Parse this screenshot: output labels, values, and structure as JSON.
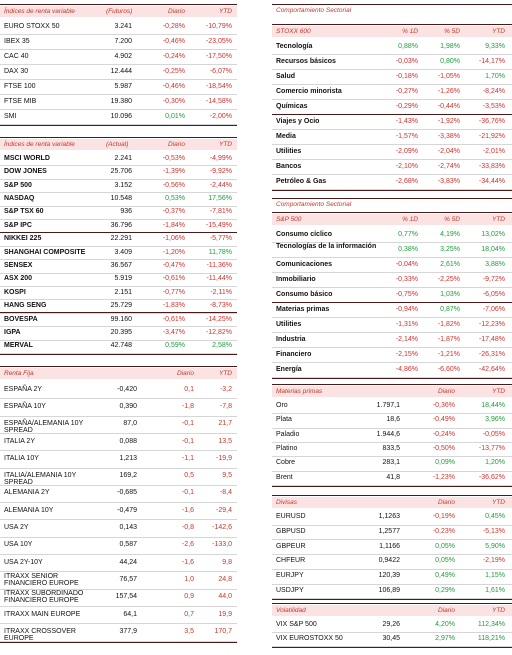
{
  "panels": [
    {
      "header": [
        "Índices de renta variable",
        "(Futuros)",
        "Diario",
        "YTD"
      ],
      "groups": [
        [
          [
            "EURO STOXX 50",
            "3.241",
            "-0,28%",
            "-10,79%"
          ],
          [
            "IBEX 35",
            "7.200",
            "-0,46%",
            "-23,05%"
          ],
          [
            "CAC 40",
            "4.902",
            "-0,24%",
            "-17,50%"
          ],
          [
            "DAX 30",
            "12.444",
            "-0,25%",
            "-6,07%"
          ],
          [
            "FTSE 100",
            "5.987",
            "-0,46%",
            "-18,54%"
          ],
          [
            "FTSE MIB",
            "19.380",
            "-0,30%",
            "-14,58%"
          ],
          [
            "SMI",
            "10.096",
            "0,01%",
            "-2,00%"
          ]
        ]
      ]
    },
    {
      "header": [
        "Índices de renta variable",
        "(Actual)",
        "Diario",
        "YTD"
      ],
      "groups": [
        [
          [
            "MSCI WORLD",
            "2.241",
            "-0,53%",
            "-4,99%"
          ],
          [
            "DOW JONES",
            "25.706",
            "-1,39%",
            "-9,92%"
          ],
          [
            "S&P 500",
            "3.152",
            "-0,56%",
            "-2,44%"
          ],
          [
            "NASDAQ",
            "10.548",
            "0,53%",
            "17,56%"
          ],
          [
            "S&P TSX 60",
            "936",
            "-0,37%",
            "-7,81%"
          ],
          [
            "S&P IPC",
            "36.796",
            "-1,84%",
            "-15,49%"
          ]
        ],
        [
          [
            "NIKKEI 225",
            "22.291",
            "-1,06%",
            "-5,77%"
          ],
          [
            "SHANGHAI COMPOSITE",
            "3.409",
            "-1,20%",
            "11,78%"
          ],
          [
            "SENSEX",
            "36.567",
            "-0,47%",
            "-11,36%"
          ],
          [
            "ASX 200",
            "5.919",
            "-0,61%",
            "-11,44%"
          ],
          [
            "KOSPI",
            "2.151",
            "-0,77%",
            "-2,11%"
          ],
          [
            "HANG SENG",
            "25.729",
            "-1,83%",
            "-8,73%"
          ]
        ],
        [
          [
            "BOVESPA",
            "99.160",
            "-0,61%",
            "-14,25%"
          ],
          [
            "IGPA",
            "20.395",
            "-3,47%",
            "-12,82%"
          ],
          [
            "MERVAL",
            "42.748",
            "0,59%",
            "2,58%"
          ]
        ]
      ]
    },
    {
      "header": [
        "Renta Fija",
        "Diario",
        "YTD"
      ],
      "groups": [
        [
          [
            "ESPAÑA 2Y",
            "-0,420",
            "0,1",
            "-3,2"
          ],
          [
            "ESPAÑA 10Y",
            "0,390",
            "-1,8",
            "-7,8"
          ],
          [
            "ESPAÑA/ALEMANIA 10Y SPREAD",
            "87,0",
            "-0,1",
            "21,7"
          ],
          [
            "ITALIA 2Y",
            "0,088",
            "-0,1",
            "13,5"
          ],
          [
            "ITALIA 10Y",
            "1,213",
            "-1,1",
            "-19,9"
          ],
          [
            "ITALIA/ALEMANIA 10Y SPREAD",
            "169,2",
            "0,5",
            "9,5"
          ],
          [
            "ALEMANIA 2Y",
            "-0,685",
            "-0,1",
            "-8,4"
          ],
          [
            "ALEMANIA 10Y",
            "-0,479",
            "-1,6",
            "-29,4"
          ],
          [
            "USA 2Y",
            "0,143",
            "-0,8",
            "-142,6"
          ],
          [
            "USA 10Y",
            "0,587",
            "-2,6",
            "-133,0"
          ],
          [
            "USA 2Y-10Y",
            "44,24",
            "-1,6",
            "9,8"
          ],
          [
            "ITRAXX SENIOR FINANCIERO EUROPE",
            "76,57",
            "1,0",
            "24,8"
          ],
          [
            "ITRAXX SUBORDINADO FINANCIERO EUROPE",
            "157,54",
            "0,9",
            "44,0"
          ],
          [
            "ITRAXX MAIN EUROPE",
            "64,1",
            "0,7",
            "19,9"
          ],
          [
            "ITRAXX CROSSOVER EUROPE",
            "377,9",
            "3,5",
            "170,7"
          ]
        ]
      ]
    },
    {
      "title": "Comportamiento Sectorial",
      "header": [
        "STOXX 600",
        "% 1D",
        "% 5D",
        "YTD"
      ],
      "groups": [
        [
          [
            "Tecnología",
            "0,88%",
            "1,98%",
            "9,33%"
          ],
          [
            "Recursos básicos",
            "-0,03%",
            "0,80%",
            "-14,17%"
          ],
          [
            "Salud",
            "-0,18%",
            "-1,05%",
            "1,70%"
          ],
          [
            "Comercio minorista",
            "-0,27%",
            "-1,26%",
            "-8,24%"
          ],
          [
            "Químicas",
            "-0,29%",
            "-0,44%",
            "-3,53%"
          ]
        ],
        [
          [
            "Viajes y Ocio",
            "-1,43%",
            "-1,92%",
            "-36,76%"
          ],
          [
            "Media",
            "-1,57%",
            "-3,38%",
            "-21,92%"
          ],
          [
            "Utilities",
            "-2,09%",
            "-2,04%",
            "-2,01%"
          ],
          [
            "Bancos",
            "-2,10%",
            "-2,74%",
            "-33,83%"
          ],
          [
            "Petróleo & Gas",
            "-2,68%",
            "-3,83%",
            "-34,44%"
          ]
        ]
      ]
    },
    {
      "title": "Comportamiento Sectorial",
      "header": [
        "S&P 500",
        "% 1D",
        "% 5D",
        "YTD"
      ],
      "groups": [
        [
          [
            "Consumo cíclico",
            "0,77%",
            "4,19%",
            "13,02%"
          ],
          [
            "Tecnologías de la información",
            "0,38%",
            "3,25%",
            "18,04%"
          ],
          [
            "Comunicaciones",
            "-0,04%",
            "2,61%",
            "3,88%"
          ],
          [
            "Inmobiliario",
            "-0,33%",
            "-2,25%",
            "-9,72%"
          ],
          [
            "Consumo básico",
            "-0,75%",
            "1,03%",
            "-6,05%"
          ]
        ],
        [
          [
            "Materias primas",
            "-0,94%",
            "0,87%",
            "-7,06%"
          ],
          [
            "Utilities",
            "-1,31%",
            "-1,82%",
            "-12,23%"
          ],
          [
            "Industria",
            "-2,14%",
            "-1,87%",
            "-17,48%"
          ],
          [
            "Financiero",
            "-2,15%",
            "-1,21%",
            "-26,31%"
          ],
          [
            "Energía",
            "-4,86%",
            "-6,60%",
            "-42,64%"
          ]
        ]
      ]
    },
    {
      "header": [
        "Materias primas",
        "Diario",
        "YTD"
      ],
      "groups": [
        [
          [
            "Oro",
            "1.797,1",
            "-0,36%",
            "18,44%"
          ],
          [
            "Plata",
            "18,6",
            "-0,49%",
            "3,96%"
          ],
          [
            "Paladio",
            "1.944,6",
            "-0,24%",
            "-0,05%"
          ],
          [
            "Platino",
            "833,5",
            "-0,50%",
            "-13,77%"
          ],
          [
            "Cobre",
            "283,1",
            "0,09%",
            "1,20%"
          ],
          [
            "Brent",
            "41,8",
            "-1,23%",
            "-36,62%"
          ]
        ]
      ]
    },
    {
      "header": [
        "Divisas",
        "Diario",
        "YTD"
      ],
      "groups": [
        [
          [
            "EURUSD",
            "1,1263",
            "-0,19%",
            "0,45%"
          ],
          [
            "GBPUSD",
            "1,2577",
            "-0,23%",
            "-5,13%"
          ],
          [
            "GBPEUR",
            "1,1166",
            "0,05%",
            "5,90%"
          ],
          [
            "CHFEUR",
            "0,9422",
            "0,05%",
            "-2,19%"
          ],
          [
            "EURJPY",
            "120,39",
            "0,49%",
            "1,15%"
          ],
          [
            "USDJPY",
            "106,89",
            "0,29%",
            "1,61%"
          ]
        ]
      ]
    },
    {
      "header": [
        "Volatilidad",
        "Diario",
        "YTD"
      ],
      "groups": [
        [
          [
            "VIX S&P 500",
            "29,26",
            "4,20%",
            "112,34%"
          ],
          [
            "VIX EUROSTOXX 50",
            "30,45",
            "2,97%",
            "118,21%"
          ]
        ]
      ]
    }
  ]
}
